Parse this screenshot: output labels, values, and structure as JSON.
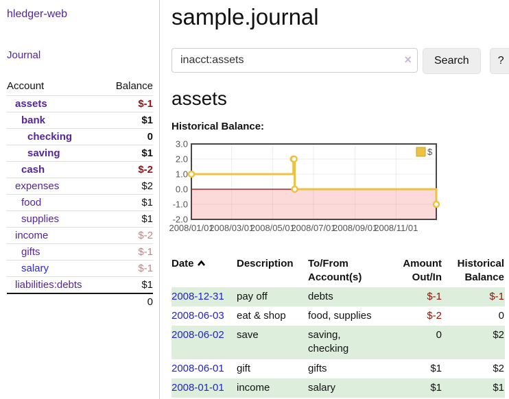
{
  "app": {
    "title": "hledger-web"
  },
  "sidebar": {
    "journal_link": "Journal",
    "accounts": {
      "col_account": "Account",
      "col_balance": "Balance",
      "rows": [
        {
          "name": "assets",
          "balance": "$-1"
        },
        {
          "name": "bank",
          "balance": "$1"
        },
        {
          "name": "checking",
          "balance": "0"
        },
        {
          "name": "saving",
          "balance": "$1"
        },
        {
          "name": "cash",
          "balance": "$-2"
        },
        {
          "name": "expenses",
          "balance": "$2"
        },
        {
          "name": "food",
          "balance": "$1"
        },
        {
          "name": "supplies",
          "balance": "$1"
        },
        {
          "name": "income",
          "balance": "$-2"
        },
        {
          "name": "gifts",
          "balance": "$-1"
        },
        {
          "name": "salary",
          "balance": "$-1"
        },
        {
          "name": "liabilities:debts",
          "balance": "$1"
        }
      ],
      "total": "0"
    }
  },
  "main": {
    "title": "sample.journal",
    "search": {
      "value": "inacct:assets",
      "clear_label": "×",
      "search_button": "Search",
      "help_button": "?"
    },
    "heading": "assets",
    "chart_title": "Historical Balance:",
    "register": {
      "col_date": "Date",
      "col_description": "Description",
      "col_accounts": "To/From Account(s)",
      "col_amount": "Amount Out/In",
      "col_balance": "Historical Balance",
      "rows": [
        {
          "date": "2008-12-31",
          "description": "pay off",
          "accounts": "debts",
          "amount": "$-1",
          "balance": "$-1"
        },
        {
          "date": "2008-06-03",
          "description": "eat & shop",
          "accounts": "food, supplies",
          "amount": "$-2",
          "balance": "0"
        },
        {
          "date": "2008-06-02",
          "description": "save",
          "accounts": "saving, checking",
          "amount": "0",
          "balance": "$2"
        },
        {
          "date": "2008-06-01",
          "description": "gift",
          "accounts": "gifts",
          "amount": "$1",
          "balance": "$2"
        },
        {
          "date": "2008-01-01",
          "description": "income",
          "accounts": "salary",
          "amount": "$1",
          "balance": "$1"
        }
      ]
    }
  },
  "chart_data": {
    "type": "line",
    "step": true,
    "title": "Historical Balance:",
    "series": [
      {
        "name": "$",
        "color": "#edc240",
        "points": [
          [
            "2008-01-01",
            1
          ],
          [
            "2008-06-01",
            2
          ],
          [
            "2008-06-02",
            2
          ],
          [
            "2008-06-03",
            0
          ],
          [
            "2008-12-31",
            -1
          ]
        ]
      }
    ],
    "x_ticks": [
      "2008/01/01",
      "2008/03/01",
      "2008/05/01",
      "2008/07/01",
      "2008/09/01",
      "2008/11/01"
    ],
    "y_ticks": [
      3,
      2,
      1,
      0,
      -1,
      -2
    ],
    "xlim": [
      "2008-01-01",
      "2008-12-31"
    ],
    "ylim": [
      -2,
      3
    ],
    "grid": true,
    "negative_region_color": "#fcdada",
    "zero_line_color": "#990000",
    "legend": {
      "label": "$",
      "position": "top-right"
    }
  }
}
